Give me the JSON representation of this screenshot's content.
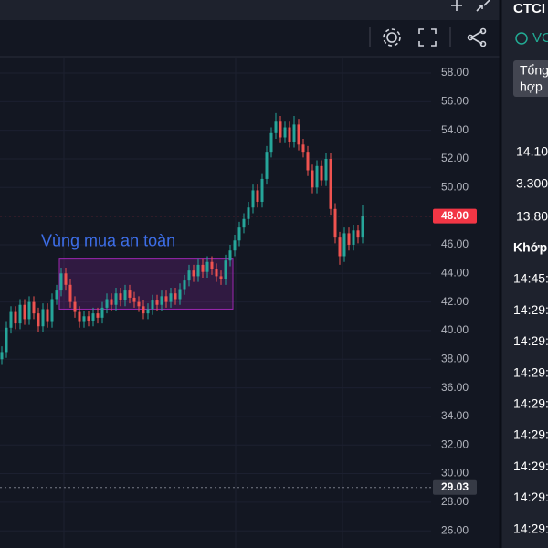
{
  "chart_data": {
    "type": "candlestick",
    "up_color": "#26a69a",
    "down_color": "#ef5350",
    "open": [
      38.0,
      38.5,
      40.2,
      41.3,
      40.5,
      41.8,
      40.8,
      42.0,
      41.2,
      40.3,
      41.5,
      40.6,
      42.2,
      42.8,
      44.0,
      43.2,
      42.0,
      41.3,
      40.6,
      41.0,
      40.7,
      41.2,
      40.9,
      41.6,
      42.2,
      41.8,
      42.6,
      42.1,
      42.8,
      42.3,
      42.0,
      41.7,
      41.2,
      41.5,
      42.1,
      41.8,
      42.4,
      42.0,
      42.6,
      42.2,
      42.9,
      43.5,
      44.2,
      43.8,
      44.6,
      44.1,
      44.8,
      44.3,
      43.8,
      43.6,
      44.9,
      45.6,
      46.3,
      47.2,
      47.8,
      48.6,
      49.8,
      49.0,
      50.6,
      52.5,
      53.8,
      54.6,
      53.5,
      54.2,
      53.2,
      54.4,
      53.0,
      52.5,
      51.2,
      50.0,
      51.5,
      50.5,
      52.0,
      48.5,
      46.5,
      45.2,
      46.8,
      46.0,
      47.0,
      46.5
    ],
    "high": [
      38.9,
      40.6,
      41.7,
      41.7,
      42.2,
      42.2,
      42.4,
      42.4,
      41.6,
      41.9,
      41.9,
      42.6,
      43.2,
      44.4,
      44.4,
      43.6,
      42.4,
      41.7,
      41.4,
      41.4,
      41.6,
      41.6,
      42.0,
      42.6,
      42.6,
      43.0,
      43.0,
      43.2,
      43.2,
      42.7,
      42.4,
      42.1,
      41.9,
      42.5,
      42.5,
      42.8,
      42.8,
      43.0,
      43.0,
      43.3,
      43.9,
      44.6,
      44.6,
      45.0,
      45.0,
      45.2,
      45.2,
      44.7,
      44.2,
      45.3,
      46.0,
      46.7,
      47.6,
      48.2,
      49.0,
      50.2,
      50.2,
      51.0,
      52.9,
      54.2,
      55.2,
      55.0,
      54.6,
      54.6,
      55.0,
      54.8,
      53.4,
      52.9,
      51.6,
      51.9,
      51.9,
      52.4,
      52.4,
      48.9,
      46.9,
      47.2,
      47.2,
      47.4,
      47.4,
      48.8
    ],
    "low": [
      37.6,
      38.1,
      39.8,
      40.1,
      40.1,
      40.4,
      40.4,
      40.8,
      39.9,
      39.9,
      40.2,
      40.2,
      41.8,
      42.4,
      42.8,
      41.6,
      40.9,
      40.2,
      40.2,
      40.3,
      40.3,
      40.5,
      40.5,
      41.2,
      41.4,
      41.4,
      41.7,
      41.7,
      41.9,
      41.6,
      41.3,
      40.8,
      40.8,
      41.1,
      41.4,
      41.4,
      41.6,
      41.6,
      41.8,
      41.8,
      42.5,
      43.1,
      43.4,
      43.4,
      43.7,
      43.7,
      43.9,
      43.4,
      43.2,
      43.2,
      44.5,
      45.2,
      45.9,
      46.8,
      47.4,
      48.2,
      48.6,
      48.6,
      50.2,
      52.1,
      53.4,
      53.1,
      53.1,
      52.8,
      52.8,
      52.6,
      52.1,
      50.8,
      49.6,
      49.6,
      50.1,
      50.1,
      48.1,
      46.1,
      44.6,
      44.8,
      45.6,
      45.6,
      46.1,
      46.1
    ],
    "close": [
      38.5,
      40.2,
      41.3,
      40.5,
      41.8,
      40.8,
      42.0,
      41.2,
      40.3,
      41.5,
      40.6,
      42.2,
      42.8,
      44.0,
      43.2,
      42.0,
      41.3,
      40.6,
      41.0,
      40.7,
      41.2,
      40.9,
      41.6,
      42.2,
      41.8,
      42.6,
      42.1,
      42.8,
      42.3,
      42.0,
      41.7,
      41.2,
      41.5,
      42.1,
      41.8,
      42.4,
      42.0,
      42.6,
      42.2,
      42.9,
      43.5,
      44.2,
      43.8,
      44.6,
      44.1,
      44.8,
      44.3,
      43.8,
      43.6,
      44.9,
      45.6,
      46.3,
      47.2,
      47.8,
      48.6,
      49.8,
      49.0,
      50.6,
      52.5,
      53.8,
      54.6,
      53.5,
      54.2,
      53.2,
      54.4,
      53.0,
      52.5,
      51.2,
      50.0,
      51.5,
      50.5,
      52.0,
      48.5,
      46.5,
      45.2,
      46.8,
      46.0,
      47.0,
      46.5,
      48.0
    ],
    "ylim": [
      24.8,
      59.15
    ],
    "yticks": [
      {
        "value": 58,
        "label": "58.00"
      },
      {
        "value": 56,
        "label": "56.00"
      },
      {
        "value": 54,
        "label": "54.00"
      },
      {
        "value": 52,
        "label": "52.00"
      },
      {
        "value": 50,
        "label": "50.00"
      },
      {
        "value": 48,
        "label": "48.00"
      },
      {
        "value": 46,
        "label": "46.00"
      },
      {
        "value": 44,
        "label": "44.00"
      },
      {
        "value": 42,
        "label": "42.00"
      },
      {
        "value": 40,
        "label": "40.00"
      },
      {
        "value": 38,
        "label": "38.00"
      },
      {
        "value": 36,
        "label": "36.00"
      },
      {
        "value": 34,
        "label": "34.00"
      },
      {
        "value": 32,
        "label": "32.00"
      },
      {
        "value": 30,
        "label": "30.00"
      },
      {
        "value": 28,
        "label": "28.00"
      },
      {
        "value": 26,
        "label": "26.00"
      }
    ],
    "grid": true,
    "price_lines": [
      {
        "value": 48,
        "label": "48.00",
        "color": "#f23645"
      },
      {
        "value": 29.03,
        "label": "29.03",
        "color": "#787b86"
      }
    ],
    "zone": {
      "label": "Vùng mua an toàn",
      "top": 45.0,
      "bottom": 41.5
    }
  },
  "side_panel": {
    "symbol": "CTCI",
    "exchange": "VC",
    "tab": [
      "Tổng",
      "hợp"
    ],
    "stats": [
      "14.10",
      "3.300",
      "13.80"
    ],
    "section": "Khớp",
    "times": [
      "14:45:",
      "14:29:",
      "14:29:",
      "14:29:",
      "14:29:",
      "14:29:",
      "14:29:",
      "14:29:",
      "14:29:"
    ]
  }
}
